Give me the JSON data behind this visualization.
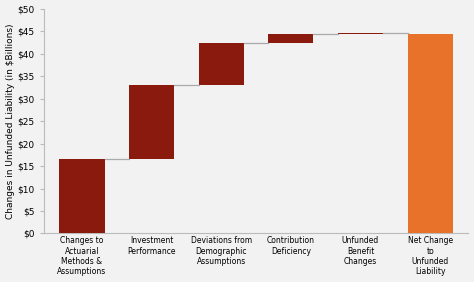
{
  "categories": [
    "Changes to\nActuarial\nMethods &\nAssumptions",
    "Investment\nPerformance",
    "Deviations from\nDemographic\nAssumptions",
    "Contribution\nDeficiency",
    "Unfunded\nBenefit\nChanges",
    "Net Change\nto\nUnfunded\nLiability"
  ],
  "values": [
    16.7,
    16.3,
    9.5,
    2.0,
    0.2,
    44.5
  ],
  "bottoms": [
    0,
    16.7,
    33.0,
    42.5,
    44.5,
    0
  ],
  "bar_colors": [
    "#8B1A0E",
    "#8B1A0E",
    "#8B1A0E",
    "#8B1A0E",
    "#8B1A0E",
    "#E8722A"
  ],
  "connector_color": "#aaaaaa",
  "ylim": [
    0,
    50
  ],
  "yticks": [
    0,
    5,
    10,
    15,
    20,
    25,
    30,
    35,
    40,
    45,
    50
  ],
  "ytick_labels": [
    "$0",
    "$5",
    "$10",
    "$15",
    "$20",
    "$25",
    "$30",
    "$35",
    "$40",
    "$45",
    "$50"
  ],
  "ylabel": "Changes in Unfunded Liability (in $Billions)",
  "background_color": "#F2F2F2",
  "bar_width": 0.65,
  "connector_linewidth": 0.9,
  "xlabel_fontsize": 5.5,
  "ylabel_fontsize": 6.5,
  "ytick_fontsize": 6.5
}
